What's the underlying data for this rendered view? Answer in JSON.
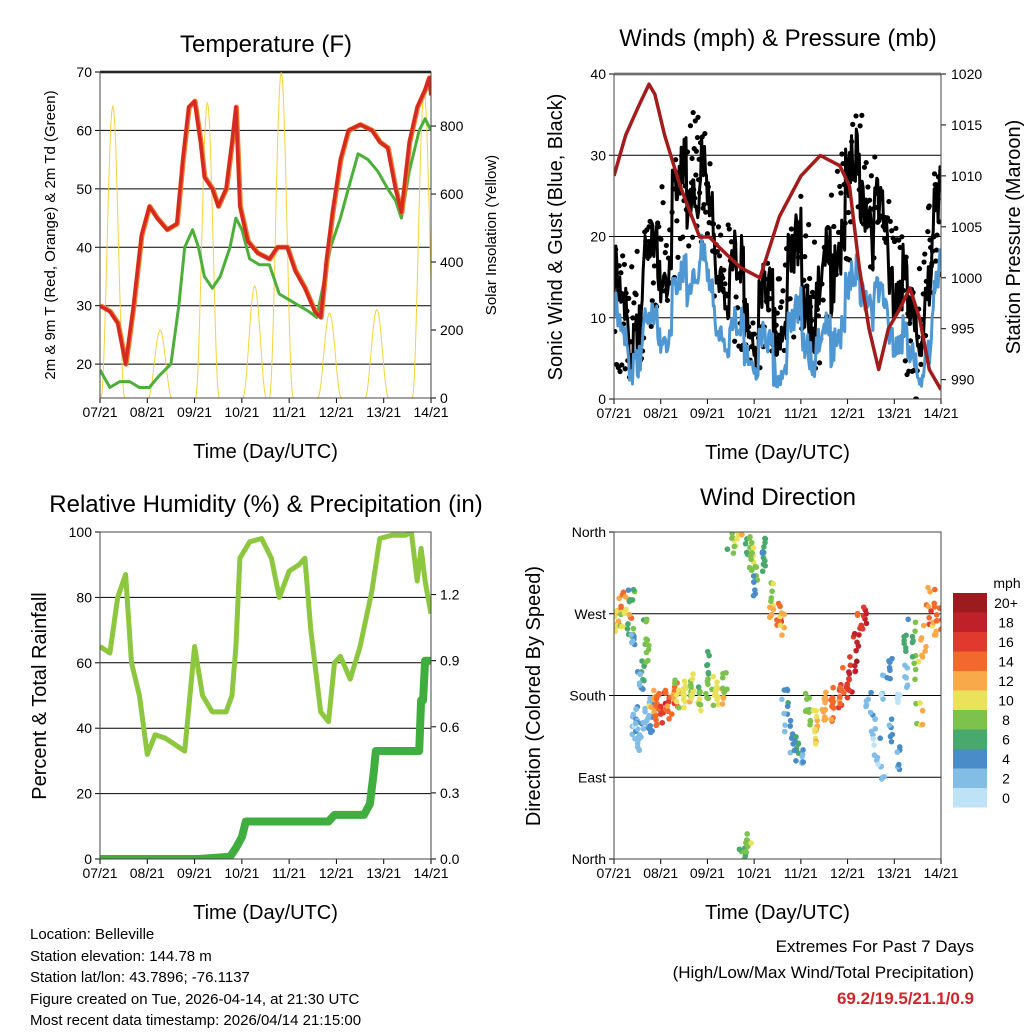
{
  "chart_data": [
    {
      "type": "line",
      "title": "Temperature (F)",
      "xlabel": "Time (Day/UTC)",
      "ylabel": "2m & 9m T (Red, Orange) & 2m Td (Green)",
      "ylabel_right": "Solar Insolation (Yellow)",
      "x_unit": "hours since 07/21",
      "x_ticks": [
        "07/21",
        "08/21",
        "09/21",
        "10/21",
        "11/21",
        "12/21",
        "13/21",
        "14/21"
      ],
      "ylim": [
        14.2,
        70
      ],
      "y_ticks": [
        20,
        30,
        40,
        50,
        60,
        70
      ],
      "ylim_right": [
        0,
        959
      ],
      "y_ticks_right": [
        0,
        200,
        400,
        600,
        800
      ],
      "colors": {
        "t2m": "#d42a22",
        "t9m": "#f07b2a",
        "td": "#4caf3a",
        "solar": "#f5d23c"
      },
      "series": [
        {
          "name": "2m T",
          "x": [
            0,
            5,
            9,
            13,
            17,
            21,
            25,
            29,
            34,
            39,
            42,
            45,
            48,
            51,
            53,
            57,
            60,
            64,
            67,
            69,
            71,
            75,
            80,
            86,
            90,
            95,
            99,
            104,
            109,
            112,
            115,
            118,
            122,
            126,
            132,
            138,
            142,
            146,
            150,
            153,
            157,
            161,
            165,
            167,
            168
          ],
          "values": [
            30,
            29,
            27,
            20,
            30,
            42,
            47,
            45,
            43,
            44,
            55,
            64,
            65,
            58,
            52,
            50,
            47,
            50,
            58,
            64,
            47,
            41,
            39,
            38,
            40,
            40,
            36,
            33,
            29,
            28,
            38,
            46,
            55,
            60,
            61,
            60,
            58,
            57,
            50,
            46,
            58,
            64,
            67,
            69,
            66
          ]
        },
        {
          "name": "2m Td",
          "x": [
            0,
            5,
            10,
            15,
            20,
            25,
            30,
            36,
            40,
            43,
            47,
            50,
            53,
            57,
            61,
            66,
            69,
            72,
            76,
            81,
            86,
            91,
            96,
            101,
            106,
            110,
            113,
            117,
            122,
            126,
            131,
            136,
            141,
            146,
            150,
            153,
            157,
            162,
            165,
            168
          ],
          "values": [
            19,
            16,
            17,
            17,
            16,
            16,
            18,
            20,
            30,
            40,
            43,
            40,
            35,
            33,
            35,
            40,
            45,
            43,
            38,
            37,
            37,
            32,
            31,
            30,
            29,
            28,
            33,
            40,
            45,
            50,
            56,
            55,
            53,
            50,
            48,
            45,
            53,
            60,
            62,
            60
          ]
        },
        {
          "name": "Solar Insolation",
          "x": [
            6.5,
            30.5,
            54.5,
            78.5,
            92,
            116.5,
            140.5,
            164.5
          ],
          "values": [
            860,
            200,
            870,
            330,
            960,
            250,
            260,
            900
          ]
        }
      ]
    },
    {
      "type": "line",
      "title": "Winds (mph) & Pressure (mb)",
      "xlabel": "Time (Day/UTC)",
      "ylabel": "Sonic Wind & Gust (Blue, Black)",
      "ylabel_right": "Station Pressure (Maroon)",
      "x_unit": "hours since 07/21",
      "x_ticks": [
        "07/21",
        "08/21",
        "09/21",
        "10/21",
        "11/21",
        "12/21",
        "13/21",
        "14/21"
      ],
      "ylim": [
        0,
        40
      ],
      "y_ticks": [
        0,
        10,
        20,
        30,
        40
      ],
      "ylim_right": [
        988.1,
        1020
      ],
      "y_ticks_right": [
        990,
        995,
        1000,
        1005,
        1010,
        1015,
        1020
      ],
      "colors": {
        "wind": "#4f97d3",
        "gust": "#000000",
        "pressure": "#a31c1c"
      },
      "series": [
        {
          "name": "Sonic Wind",
          "x": [
            0,
            8,
            18,
            28,
            39,
            44,
            52,
            62,
            75,
            85,
            96,
            105,
            116,
            126,
            134,
            147,
            155,
            162,
            168
          ],
          "values": [
            10,
            5,
            8,
            10,
            15,
            18,
            10,
            8,
            6,
            5,
            10,
            5,
            10,
            15,
            12,
            8,
            2,
            8,
            15
          ]
        },
        {
          "name": "Gust",
          "x": [
            0,
            8,
            18,
            28,
            39,
            44,
            52,
            62,
            75,
            85,
            96,
            105,
            116,
            126,
            134,
            147,
            155,
            162,
            168
          ],
          "values": [
            13,
            8,
            15,
            20,
            27,
            28,
            18,
            15,
            10,
            12,
            17,
            10,
            22,
            28,
            22,
            15,
            5,
            18,
            22
          ]
        },
        {
          "name": "Station Pressure",
          "x": [
            0,
            6,
            13,
            18,
            21,
            26,
            34,
            44,
            49,
            54,
            65,
            75,
            85,
            96,
            106,
            116,
            121,
            126,
            131,
            136,
            141,
            147,
            152,
            157,
            162,
            168
          ],
          "values": [
            1010,
            1014,
            1017,
            1019,
            1018,
            1014,
            1009,
            1004,
            1004,
            1003,
            1001,
            1000,
            1006,
            1010,
            1012,
            1011,
            1009,
            1001,
            995,
            991,
            995,
            997,
            999,
            996,
            991,
            989
          ]
        }
      ]
    },
    {
      "type": "line",
      "title": "Relative Humidity (%) & Precipitation (in)",
      "xlabel": "Time (Day/UTC)",
      "ylabel": "Percent & Total Rainfall",
      "x_unit": "hours since 07/21",
      "x_ticks": [
        "07/21",
        "08/21",
        "09/21",
        "10/21",
        "11/21",
        "12/21",
        "13/21",
        "14/21"
      ],
      "ylim": [
        0,
        100
      ],
      "y_ticks": [
        0,
        20,
        40,
        60,
        80,
        100
      ],
      "ylim_right": [
        0,
        1.484
      ],
      "y_ticks_right": [
        "0.0",
        "0.3",
        "0.6",
        "0.9",
        "1.2"
      ],
      "colors": {
        "rh": "#8dc63f",
        "precip": "#3fae3f"
      },
      "series": [
        {
          "name": "Relative Humidity",
          "x": [
            0,
            5,
            9,
            13,
            16,
            20,
            24,
            28,
            33,
            38,
            43,
            48,
            52,
            57,
            64,
            67,
            69,
            71,
            76,
            82,
            87,
            91,
            96,
            101,
            104,
            107,
            112,
            116,
            119,
            122,
            127,
            132,
            138,
            142,
            148,
            155,
            158,
            161,
            163,
            165,
            168
          ],
          "values": [
            65,
            63,
            80,
            87,
            60,
            50,
            32,
            38,
            37,
            35,
            33,
            65,
            50,
            45,
            45,
            50,
            65,
            92,
            97,
            98,
            92,
            80,
            88,
            90,
            92,
            70,
            45,
            42,
            60,
            62,
            55,
            65,
            82,
            98,
            99,
            99,
            100,
            85,
            95,
            85,
            75
          ]
        },
        {
          "name": "Total Precipitation",
          "x": [
            0,
            50,
            66,
            69,
            72,
            74,
            76,
            116,
            119,
            134,
            137,
            139,
            140,
            162,
            163,
            164,
            165,
            168
          ],
          "values": [
            0,
            0,
            0.01,
            0.05,
            0.1,
            0.17,
            0.17,
            0.17,
            0.2,
            0.2,
            0.25,
            0.4,
            0.49,
            0.49,
            0.72,
            0.72,
            0.9,
            0.9
          ]
        }
      ]
    },
    {
      "type": "scatter",
      "title": "Wind Direction",
      "xlabel": "Time (Day/UTC)",
      "ylabel": "Direction (Colored By Speed)",
      "x_unit": "hours since 07/21",
      "x_ticks": [
        "07/21",
        "08/21",
        "09/21",
        "10/21",
        "11/21",
        "12/21",
        "13/21",
        "14/21"
      ],
      "ylim": [
        0,
        360
      ],
      "y_ticks": [
        {
          "value": 0,
          "label": "North"
        },
        {
          "value": 90,
          "label": "East"
        },
        {
          "value": 180,
          "label": "South"
        },
        {
          "value": 270,
          "label": "West"
        },
        {
          "value": 360,
          "label": "North"
        }
      ],
      "legend": {
        "title": "mph",
        "placement": "right",
        "labels": [
          "20+",
          "18",
          "16",
          "14",
          "12",
          "10",
          "8",
          "6",
          "4",
          "2",
          "0"
        ],
        "colors": [
          "#9b1b1e",
          "#c0202a",
          "#e03a2e",
          "#f2692d",
          "#f8a94a",
          "#e9e25a",
          "#7dc24d",
          "#48a86e",
          "#4a8cc8",
          "#82bde6",
          "#bfe3f6"
        ]
      },
      "points": {
        "x": [
          1,
          2,
          3,
          5,
          7,
          8,
          9,
          10,
          11,
          12,
          13,
          14,
          14,
          15,
          15,
          16,
          17,
          18,
          19,
          20,
          21,
          22,
          23,
          25,
          27,
          29,
          31,
          33,
          35,
          37,
          39,
          41,
          43,
          45,
          47,
          49,
          51,
          53,
          55,
          57,
          60,
          62,
          64,
          66,
          68,
          68,
          69,
          70,
          71,
          72,
          73,
          76,
          78,
          80,
          82,
          84,
          87,
          88,
          89,
          92,
          94,
          97,
          99,
          101,
          103,
          105,
          107,
          109,
          111,
          113,
          115,
          117,
          119,
          121,
          123,
          125,
          127,
          129,
          131,
          133,
          135,
          137,
          139,
          141,
          143,
          145,
          147,
          149,
          151,
          153,
          155,
          157,
          159,
          161,
          163,
          165,
          167
        ],
        "dir": [
          270,
          260,
          280,
          265,
          275,
          250,
          290,
          240,
          150,
          140,
          160,
          210,
          130,
          250,
          190,
          230,
          155,
          170,
          145,
          165,
          175,
          170,
          160,
          172,
          175,
          168,
          180,
          185,
          178,
          182,
          190,
          185,
          175,
          178,
          190,
          215,
          188,
          180,
          178,
          195,
          355,
          350,
          360,
          10,
          5,
          345,
          20,
          340,
          330,
          320,
          300,
          325,
          340,
          290,
          270,
          268,
          260,
          175,
          150,
          130,
          120,
          110,
          175,
          160,
          150,
          140,
          170,
          165,
          175,
          160,
          180,
          178,
          200,
          190,
          215,
          240,
          260,
          270,
          170,
          150,
          120,
          100,
          190,
          210,
          140,
          110,
          180,
          200,
          240,
          250,
          210,
          160,
          230,
          270,
          290,
          250,
          265
        ],
        "speed": [
          12,
          11,
          13,
          10,
          12,
          7,
          6,
          3,
          3,
          2,
          4,
          5,
          3,
          6,
          4,
          7,
          3,
          2,
          4,
          12,
          13,
          14,
          15,
          16,
          15,
          14,
          13,
          10,
          9,
          11,
          8,
          10,
          9,
          8,
          7,
          7,
          9,
          10,
          12,
          8,
          8,
          9,
          10,
          8,
          7,
          6,
          9,
          8,
          9,
          7,
          5,
          5,
          6,
          8,
          13,
          14,
          12,
          4,
          3,
          4,
          5,
          3,
          8,
          9,
          10,
          12,
          11,
          12,
          13,
          14,
          15,
          14,
          16,
          17,
          18,
          18,
          16,
          17,
          3,
          2,
          2,
          1,
          2,
          3,
          4,
          2,
          1,
          1,
          7,
          6,
          8,
          10,
          12,
          14,
          13,
          12,
          14
        ]
      }
    }
  ],
  "info": {
    "location": "Location: Belleville",
    "elevation": "Station elevation: 144.78 m",
    "latlon": "Station lat/lon: 43.7896; -76.1137",
    "created": "Figure created on Tue, 2026-04-14, at 21:30 UTC",
    "latest": "Most recent data timestamp: 2026/04/14 21:15:00"
  },
  "extremes": {
    "title": "Extremes For Past 7 Days",
    "subtitle": "(High/Low/Max Wind/Total Precipitation)",
    "values": "69.2/19.5/21.1/0.9",
    "color": "#d0262b"
  }
}
